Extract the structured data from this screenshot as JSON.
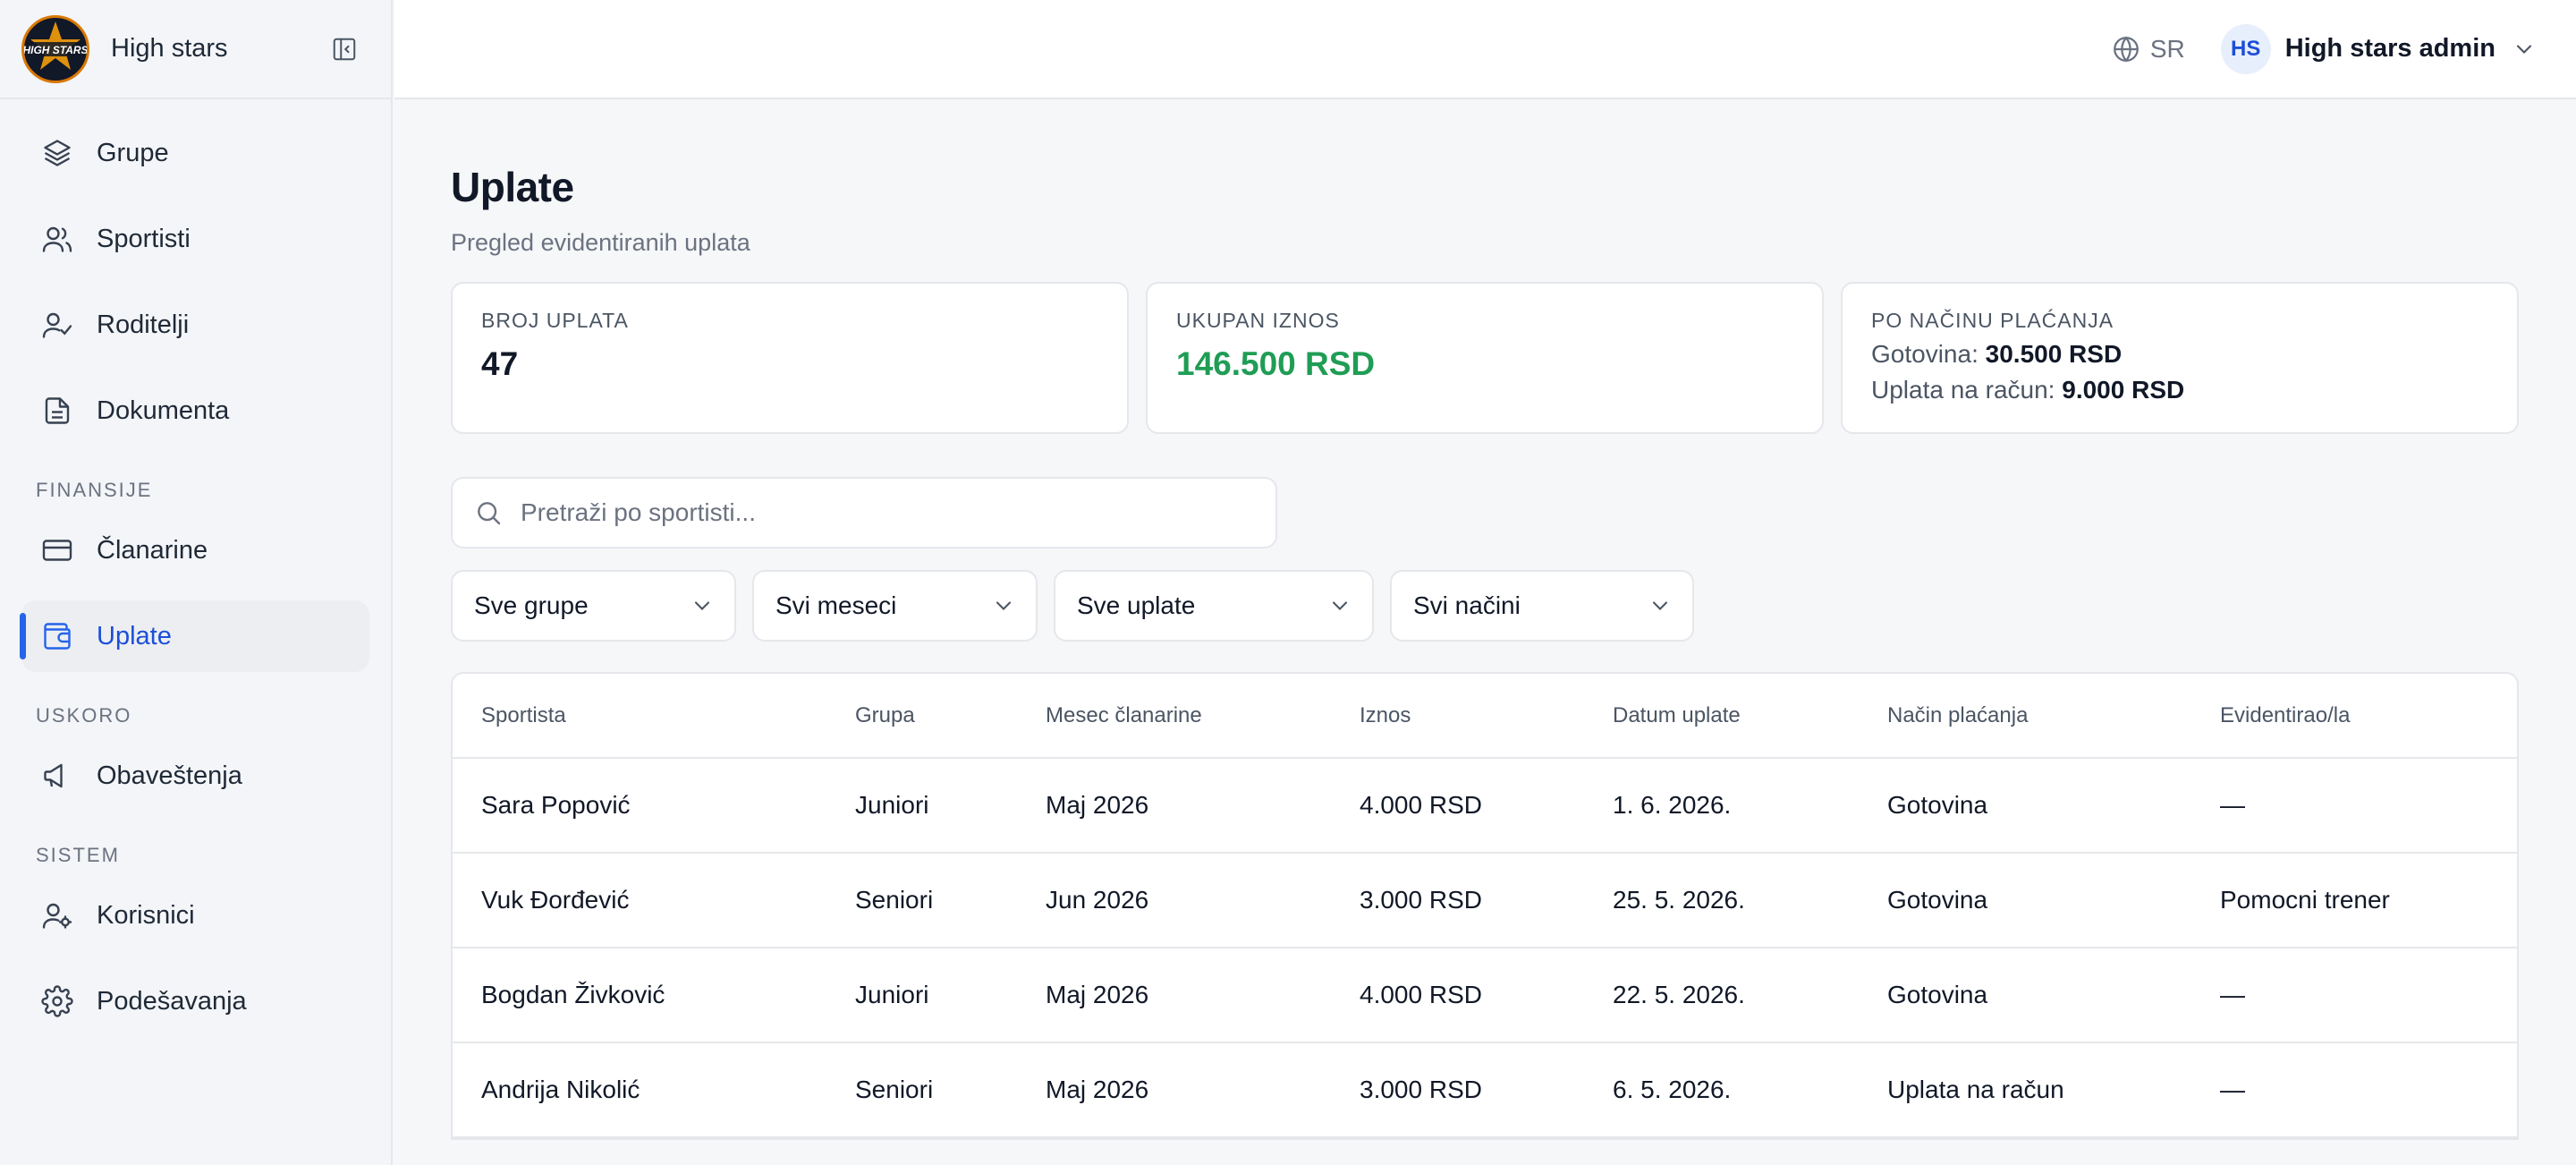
{
  "brand": {
    "name": "High stars",
    "logo_text": "HIGH STARS"
  },
  "sidebar": {
    "items_main": [
      {
        "label": "Grupe",
        "icon": "layers-icon"
      },
      {
        "label": "Sportisti",
        "icon": "users-icon"
      },
      {
        "label": "Roditelji",
        "icon": "user-check-icon"
      },
      {
        "label": "Dokumenta",
        "icon": "document-icon"
      }
    ],
    "sections": {
      "finansije": "FINANSIJE",
      "uskoro": "USKORO",
      "sistem": "SISTEM"
    },
    "items_finansije": [
      {
        "label": "Članarine",
        "icon": "card-icon"
      },
      {
        "label": "Uplate",
        "icon": "wallet-icon",
        "active": true
      }
    ],
    "items_uskoro": [
      {
        "label": "Obaveštenja",
        "icon": "megaphone-icon"
      }
    ],
    "items_sistem": [
      {
        "label": "Korisnici",
        "icon": "user-cog-icon"
      },
      {
        "label": "Podešavanja",
        "icon": "gear-icon"
      }
    ]
  },
  "header": {
    "language": "SR",
    "user_initials": "HS",
    "user_name": "High stars admin"
  },
  "page": {
    "title": "Uplate",
    "subtitle": "Pregled evidentiranih uplata"
  },
  "stats": {
    "count_label": "BROJ UPLATA",
    "count_value": "47",
    "total_label": "UKUPAN IZNOS",
    "total_value": "146.500 RSD",
    "method_label": "PO NAČINU PLAĆANJA",
    "cash_label": "Gotovina:",
    "cash_value": "30.500 RSD",
    "transfer_label": "Uplata na račun:",
    "transfer_value": "9.000 RSD"
  },
  "search": {
    "placeholder": "Pretraži po sportisti...",
    "value": ""
  },
  "filters": {
    "group": "Sve grupe",
    "month": "Svi meseci",
    "payments": "Sve uplate",
    "method": "Svi načini"
  },
  "table": {
    "headers": [
      "Sportista",
      "Grupa",
      "Mesec članarine",
      "Iznos",
      "Datum uplate",
      "Način plaćanja",
      "Evidentirao/la"
    ],
    "rows": [
      [
        "Sara Popović",
        "Juniori",
        "Maj 2026",
        "4.000 RSD",
        "1. 6. 2026.",
        "Gotovina",
        "—"
      ],
      [
        "Vuk Đorđević",
        "Seniori",
        "Jun 2026",
        "3.000 RSD",
        "25. 5. 2026.",
        "Gotovina",
        "Pomocni trener"
      ],
      [
        "Bogdan Živković",
        "Juniori",
        "Maj 2026",
        "4.000 RSD",
        "22. 5. 2026.",
        "Gotovina",
        "—"
      ],
      [
        "Andrija Nikolić",
        "Seniori",
        "Maj 2026",
        "3.000 RSD",
        "6. 5. 2026.",
        "Uplata na račun",
        "—"
      ]
    ]
  },
  "colors": {
    "accent": "#2563eb",
    "success": "#1f9d55",
    "sidebar_bg": "#f3f5f8"
  }
}
